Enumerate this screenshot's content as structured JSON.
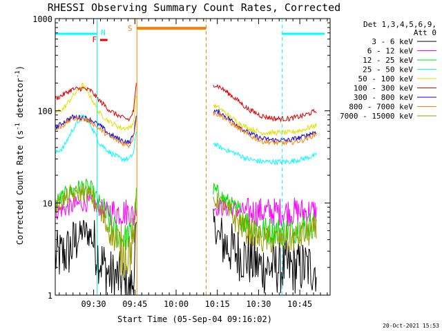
{
  "chart_data": {
    "type": "line",
    "title": "RHESSI Observing Summary Count Rates, Corrected",
    "xlabel": "Start Time (05-Sep-04 09:16:02)",
    "ylabel": "Corrected Count Rate (s-1 detector-1)",
    "ylabel_parts": {
      "pre": "Corrected Count Rate (s",
      "sup1": "-1",
      "mid": " detector",
      "sup2": "-1",
      "post": ")"
    },
    "yscale": "log",
    "xlim_minutes": [
      0,
      100
    ],
    "ylim": [
      1,
      1000
    ],
    "x_ticks": [
      {
        "label": "09:30",
        "minute": 13.97
      },
      {
        "label": "09:45",
        "minute": 28.97
      },
      {
        "label": "10:00",
        "minute": 43.97
      },
      {
        "label": "10:15",
        "minute": 58.97
      },
      {
        "label": "10:30",
        "minute": 73.97
      },
      {
        "label": "10:45",
        "minute": 88.97
      }
    ],
    "y_ticks": [
      {
        "label": "1",
        "value": 1
      },
      {
        "label": "10",
        "value": 10
      },
      {
        "label": "100",
        "value": 100
      },
      {
        "label": "1000",
        "value": 1000
      }
    ],
    "legend": {
      "position": "top-right",
      "header_line1": "Det 1,3,4,5,6,9,",
      "header_line2": "Att 0"
    },
    "series": [
      {
        "name": "3 - 6 keV",
        "color": "#000000",
        "seg1": [
          [
            0,
            2.5
          ],
          [
            5,
            3
          ],
          [
            10,
            5
          ],
          [
            13,
            4.5
          ],
          [
            16,
            2.5
          ],
          [
            20,
            1.6
          ],
          [
            24,
            1.5
          ],
          [
            27,
            1
          ],
          [
            28.5,
            1.5
          ],
          [
            29.5,
            5
          ]
        ],
        "seg2": [
          [
            57.5,
            6
          ],
          [
            60,
            4
          ],
          [
            65,
            3
          ],
          [
            70,
            2.5
          ],
          [
            75,
            2
          ],
          [
            80,
            2
          ],
          [
            85,
            2
          ],
          [
            90,
            2
          ],
          [
            95,
            2
          ]
        ]
      },
      {
        "name": "6 - 12 keV",
        "color": "#ff00ff",
        "seg1": [
          [
            0,
            8
          ],
          [
            5,
            9
          ],
          [
            10,
            10
          ],
          [
            13,
            10
          ],
          [
            16,
            9
          ],
          [
            20,
            8
          ],
          [
            24,
            8
          ],
          [
            27,
            8
          ],
          [
            28.5,
            7
          ],
          [
            29.5,
            9
          ]
        ],
        "seg2": [
          [
            57.5,
            9
          ],
          [
            60,
            9
          ],
          [
            65,
            8.5
          ],
          [
            70,
            8
          ],
          [
            75,
            8
          ],
          [
            80,
            8
          ],
          [
            85,
            8
          ],
          [
            90,
            8
          ],
          [
            95,
            8
          ]
        ]
      },
      {
        "name": "12 - 25 keV",
        "color": "#00e000",
        "seg1": [
          [
            0,
            10
          ],
          [
            5,
            13
          ],
          [
            10,
            15
          ],
          [
            13,
            14
          ],
          [
            16,
            10
          ],
          [
            20,
            6
          ],
          [
            24,
            4
          ],
          [
            27,
            4.5
          ],
          [
            28.5,
            5
          ],
          [
            29.5,
            12
          ]
        ],
        "seg2": [
          [
            57.5,
            14
          ],
          [
            60,
            12
          ],
          [
            65,
            9
          ],
          [
            70,
            6
          ],
          [
            75,
            5
          ],
          [
            80,
            5
          ],
          [
            85,
            5
          ],
          [
            90,
            5.5
          ],
          [
            95,
            6
          ]
        ]
      },
      {
        "name": "25 - 50 keV",
        "color": "#00ffff",
        "seg1": [
          [
            0,
            35
          ],
          [
            3,
            40
          ],
          [
            6,
            60
          ],
          [
            10,
            90
          ],
          [
            13,
            70
          ],
          [
            16,
            45
          ],
          [
            20,
            35
          ],
          [
            24,
            30
          ],
          [
            27,
            30
          ],
          [
            28.5,
            35
          ],
          [
            29.5,
            60
          ]
        ],
        "seg2": [
          [
            57.5,
            45
          ],
          [
            60,
            40
          ],
          [
            65,
            35
          ],
          [
            70,
            30
          ],
          [
            75,
            28
          ],
          [
            80,
            28
          ],
          [
            85,
            28
          ],
          [
            90,
            30
          ],
          [
            95,
            33
          ]
        ]
      },
      {
        "name": "50 - 100 keV",
        "color": "#e0e000",
        "seg1": [
          [
            0,
            95
          ],
          [
            3,
            105
          ],
          [
            6,
            140
          ],
          [
            10,
            190
          ],
          [
            13,
            140
          ],
          [
            16,
            95
          ],
          [
            20,
            75
          ],
          [
            24,
            65
          ],
          [
            27,
            65
          ],
          [
            28.5,
            75
          ],
          [
            29.5,
            150
          ]
        ],
        "seg2": [
          [
            57.5,
            115
          ],
          [
            60,
            105
          ],
          [
            65,
            80
          ],
          [
            70,
            65
          ],
          [
            75,
            58
          ],
          [
            80,
            58
          ],
          [
            85,
            58
          ],
          [
            90,
            62
          ],
          [
            95,
            70
          ]
        ]
      },
      {
        "name": "100 - 300 keV",
        "color": "#e00000",
        "seg1": [
          [
            0,
            135
          ],
          [
            3,
            150
          ],
          [
            6,
            170
          ],
          [
            10,
            175
          ],
          [
            13,
            165
          ],
          [
            16,
            130
          ],
          [
            20,
            100
          ],
          [
            24,
            85
          ],
          [
            27,
            80
          ],
          [
            28.5,
            100
          ],
          [
            29.5,
            195
          ]
        ],
        "seg2": [
          [
            57.5,
            195
          ],
          [
            60,
            180
          ],
          [
            65,
            140
          ],
          [
            70,
            105
          ],
          [
            75,
            88
          ],
          [
            80,
            82
          ],
          [
            85,
            82
          ],
          [
            90,
            88
          ],
          [
            95,
            100
          ]
        ]
      },
      {
        "name": "300 - 800 keV",
        "color": "#0000e0",
        "seg1": [
          [
            0,
            65
          ],
          [
            3,
            75
          ],
          [
            6,
            85
          ],
          [
            10,
            85
          ],
          [
            13,
            80
          ],
          [
            16,
            70
          ],
          [
            20,
            55
          ],
          [
            24,
            48
          ],
          [
            27,
            45
          ],
          [
            28.5,
            55
          ],
          [
            29.5,
            90
          ]
        ],
        "seg2": [
          [
            57.5,
            100
          ],
          [
            60,
            95
          ],
          [
            65,
            75
          ],
          [
            70,
            58
          ],
          [
            75,
            50
          ],
          [
            80,
            48
          ],
          [
            85,
            48
          ],
          [
            90,
            52
          ],
          [
            95,
            60
          ]
        ]
      },
      {
        "name": "800 - 7000 keV",
        "color": "#ff8000",
        "seg1": [
          [
            0,
            62
          ],
          [
            3,
            70
          ],
          [
            6,
            82
          ],
          [
            10,
            82
          ],
          [
            13,
            76
          ],
          [
            16,
            64
          ],
          [
            20,
            52
          ],
          [
            24,
            45
          ],
          [
            27,
            42
          ],
          [
            28.5,
            52
          ],
          [
            29.5,
            85
          ]
        ],
        "seg2": [
          [
            57.5,
            95
          ],
          [
            60,
            90
          ],
          [
            65,
            70
          ],
          [
            70,
            55
          ],
          [
            75,
            47
          ],
          [
            80,
            45
          ],
          [
            85,
            45
          ],
          [
            90,
            48
          ],
          [
            95,
            56
          ]
        ]
      },
      {
        "name": "7000 - 15000 keV",
        "color": "#999900",
        "seg1": [
          [
            0,
            9
          ],
          [
            5,
            12
          ],
          [
            10,
            13
          ],
          [
            13,
            12
          ],
          [
            16,
            8
          ],
          [
            20,
            5
          ],
          [
            24,
            3
          ],
          [
            27,
            3
          ],
          [
            28.5,
            4
          ],
          [
            29.5,
            10
          ]
        ],
        "seg2": [
          [
            57.5,
            11
          ],
          [
            60,
            10
          ],
          [
            65,
            7
          ],
          [
            70,
            5
          ],
          [
            75,
            4
          ],
          [
            80,
            4
          ],
          [
            85,
            4
          ],
          [
            90,
            4.5
          ],
          [
            95,
            5
          ]
        ]
      }
    ],
    "flags": [
      {
        "name": "night",
        "label": "N",
        "color": "#00ffff",
        "start_minute": 15.2,
        "end_minute": 82.5,
        "bar_ranges": [
          [
            0,
            15.2
          ],
          [
            82.5,
            98
          ]
        ]
      },
      {
        "name": "flare",
        "label": "F",
        "color": "#e00000",
        "bar_ranges": [
          [
            16.3,
            19.0
          ]
        ]
      },
      {
        "name": "saa",
        "label": "S",
        "color": "#ff8000",
        "start_minute": 29.7,
        "end_minute": 54.9,
        "bar_ranges": [
          [
            29.7,
            54.9
          ]
        ]
      }
    ]
  },
  "footer": {
    "timestamp": "20-Oct-2021 15:53"
  }
}
